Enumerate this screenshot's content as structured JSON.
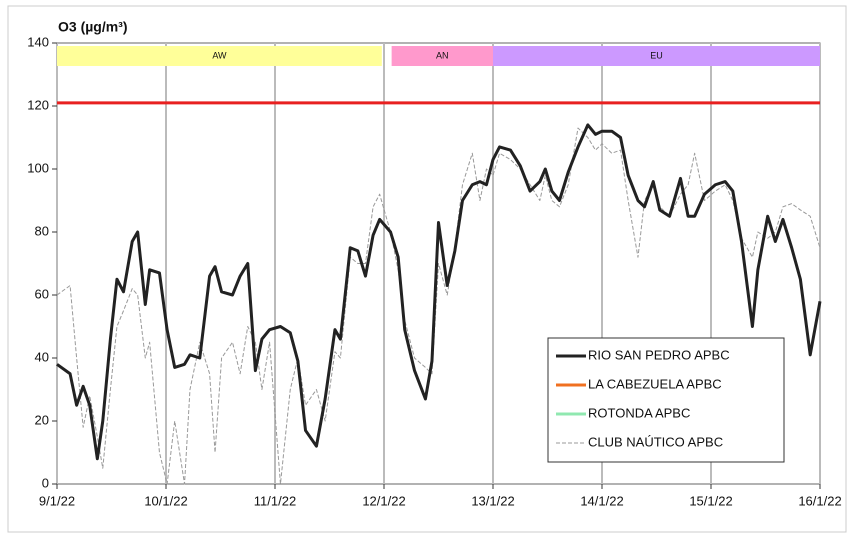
{
  "chart_data": {
    "type": "line",
    "title": "O3 (µg/m³)",
    "x": [
      9.0,
      9.12,
      9.18,
      9.24,
      9.3,
      9.37,
      9.42,
      9.49,
      9.55,
      9.61,
      9.69,
      9.74,
      9.81,
      9.85,
      9.94,
      10.01,
      10.08,
      10.17,
      10.22,
      10.31,
      10.4,
      10.45,
      10.51,
      10.61,
      10.68,
      10.75,
      10.82,
      10.88,
      10.95,
      11.05,
      11.14,
      11.21,
      11.28,
      11.38,
      11.46,
      11.55,
      11.6,
      11.69,
      11.76,
      11.83,
      11.9,
      11.96,
      12.06,
      12.13,
      12.19,
      12.28,
      12.38,
      12.44,
      12.5,
      12.58,
      12.65,
      12.72,
      12.81,
      12.88,
      12.94,
      13.0,
      13.06,
      13.16,
      13.25,
      13.34,
      13.43,
      13.48,
      13.54,
      13.61,
      13.69,
      13.78,
      13.87,
      13.94,
      14.0,
      14.09,
      14.17,
      14.24,
      14.33,
      14.39,
      14.47,
      14.53,
      14.62,
      14.72,
      14.79,
      14.85,
      14.94,
      15.04,
      15.13,
      15.2,
      15.28,
      15.38,
      15.43,
      15.52,
      15.59,
      15.66,
      15.74,
      15.82,
      15.91,
      16.0
    ],
    "series": [
      {
        "name": "RIO SAN PEDRO APBC",
        "color": "#222222",
        "width": 3,
        "values": [
          38,
          35,
          25,
          31,
          25,
          8,
          20,
          46,
          65,
          61,
          77,
          80,
          57,
          68,
          67,
          49,
          37,
          38,
          41,
          40,
          66,
          69,
          61,
          60,
          66,
          70,
          36,
          46,
          49,
          50,
          48,
          39,
          17,
          12,
          27,
          49,
          46,
          75,
          74,
          66,
          79,
          84,
          80,
          72,
          49,
          36,
          27,
          39,
          83,
          63,
          74,
          90,
          95,
          96,
          95,
          103,
          107,
          106,
          101,
          93,
          96,
          100,
          93,
          90,
          99,
          107,
          114,
          111,
          112,
          112,
          110,
          98,
          90,
          88,
          96,
          87,
          85,
          97,
          85,
          85,
          92,
          95,
          96,
          93,
          77,
          50,
          68,
          85,
          77,
          84,
          75,
          65,
          41,
          58
        ]
      },
      {
        "name": "LA CABEZUELA  APBC",
        "color": "#f07020",
        "width": 3
      },
      {
        "name": "ROTONDA  APBC",
        "color": "#90e8b0",
        "width": 3
      },
      {
        "name": "CLUB NAÚTICO  APBC",
        "color": "#999999",
        "width": 1,
        "dash": true,
        "values": [
          60,
          63,
          40,
          18,
          28,
          15,
          5,
          30,
          50,
          55,
          62,
          60,
          40,
          45,
          10,
          0,
          20,
          0,
          30,
          45,
          35,
          10,
          40,
          45,
          35,
          50,
          45,
          30,
          45,
          0,
          30,
          40,
          25,
          30,
          20,
          42,
          40,
          72,
          70,
          70,
          88,
          92,
          80,
          68,
          52,
          40,
          37,
          35,
          70,
          60,
          75,
          95,
          105,
          90,
          100,
          98,
          105,
          103,
          100,
          95,
          90,
          98,
          90,
          88,
          95,
          113,
          110,
          106,
          108,
          105,
          106,
          90,
          72,
          90,
          95,
          88,
          85,
          92,
          95,
          105,
          90,
          93,
          95,
          90,
          78,
          72,
          80,
          78,
          80,
          88,
          89,
          87,
          85,
          75
        ]
      }
    ],
    "reference_line": {
      "value": 121,
      "color": "#e82020"
    },
    "bands": [
      {
        "label": "AW",
        "start": 9,
        "end": 11.98,
        "color": "#ffff99"
      },
      {
        "label": "AN",
        "start": 12.07,
        "end": 13,
        "color": "#ff99cc"
      },
      {
        "label": "EU",
        "start": 13,
        "end": 16,
        "color": "#cc99ff"
      }
    ],
    "xlim": [
      9,
      16
    ],
    "xticks": [
      {
        "value": 9,
        "label": "9/1/22"
      },
      {
        "value": 10,
        "label": "10/1/22"
      },
      {
        "value": 11,
        "label": "11/1/22"
      },
      {
        "value": 12,
        "label": "12/1/22"
      },
      {
        "value": 13,
        "label": "13/1/22"
      },
      {
        "value": 14,
        "label": "14/1/22"
      },
      {
        "value": 15,
        "label": "15/1/22"
      },
      {
        "value": 16,
        "label": "16/1/22"
      }
    ],
    "ylim": [
      0,
      140
    ],
    "yticks": [
      0,
      20,
      40,
      60,
      80,
      100,
      120,
      140
    ],
    "grid": true,
    "legend": "lower right"
  }
}
